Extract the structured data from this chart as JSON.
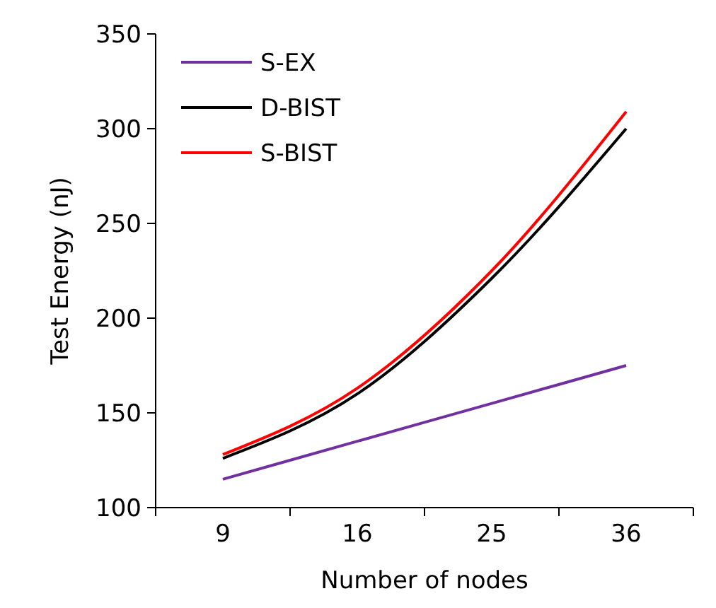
{
  "chart_data": {
    "type": "line",
    "xlabel": "Number of nodes",
    "ylabel": "Test Energy (nJ)",
    "categories": [
      "9",
      "16",
      "25",
      "36"
    ],
    "ylim": [
      100,
      350
    ],
    "yticks": [
      100,
      150,
      200,
      250,
      300,
      350
    ],
    "grid": false,
    "legend": "top left",
    "marker": "none",
    "line_style": "solid",
    "series": [
      {
        "name": "S-EX",
        "color": "#7030a0",
        "values": [
          115,
          135,
          155,
          175
        ]
      },
      {
        "name": "D-BIST",
        "color": "#000000",
        "values": [
          126,
          160,
          221,
          300
        ]
      },
      {
        "name": "S-BIST",
        "color": "#ff0000",
        "values": [
          128,
          163,
          225,
          309
        ]
      }
    ]
  }
}
